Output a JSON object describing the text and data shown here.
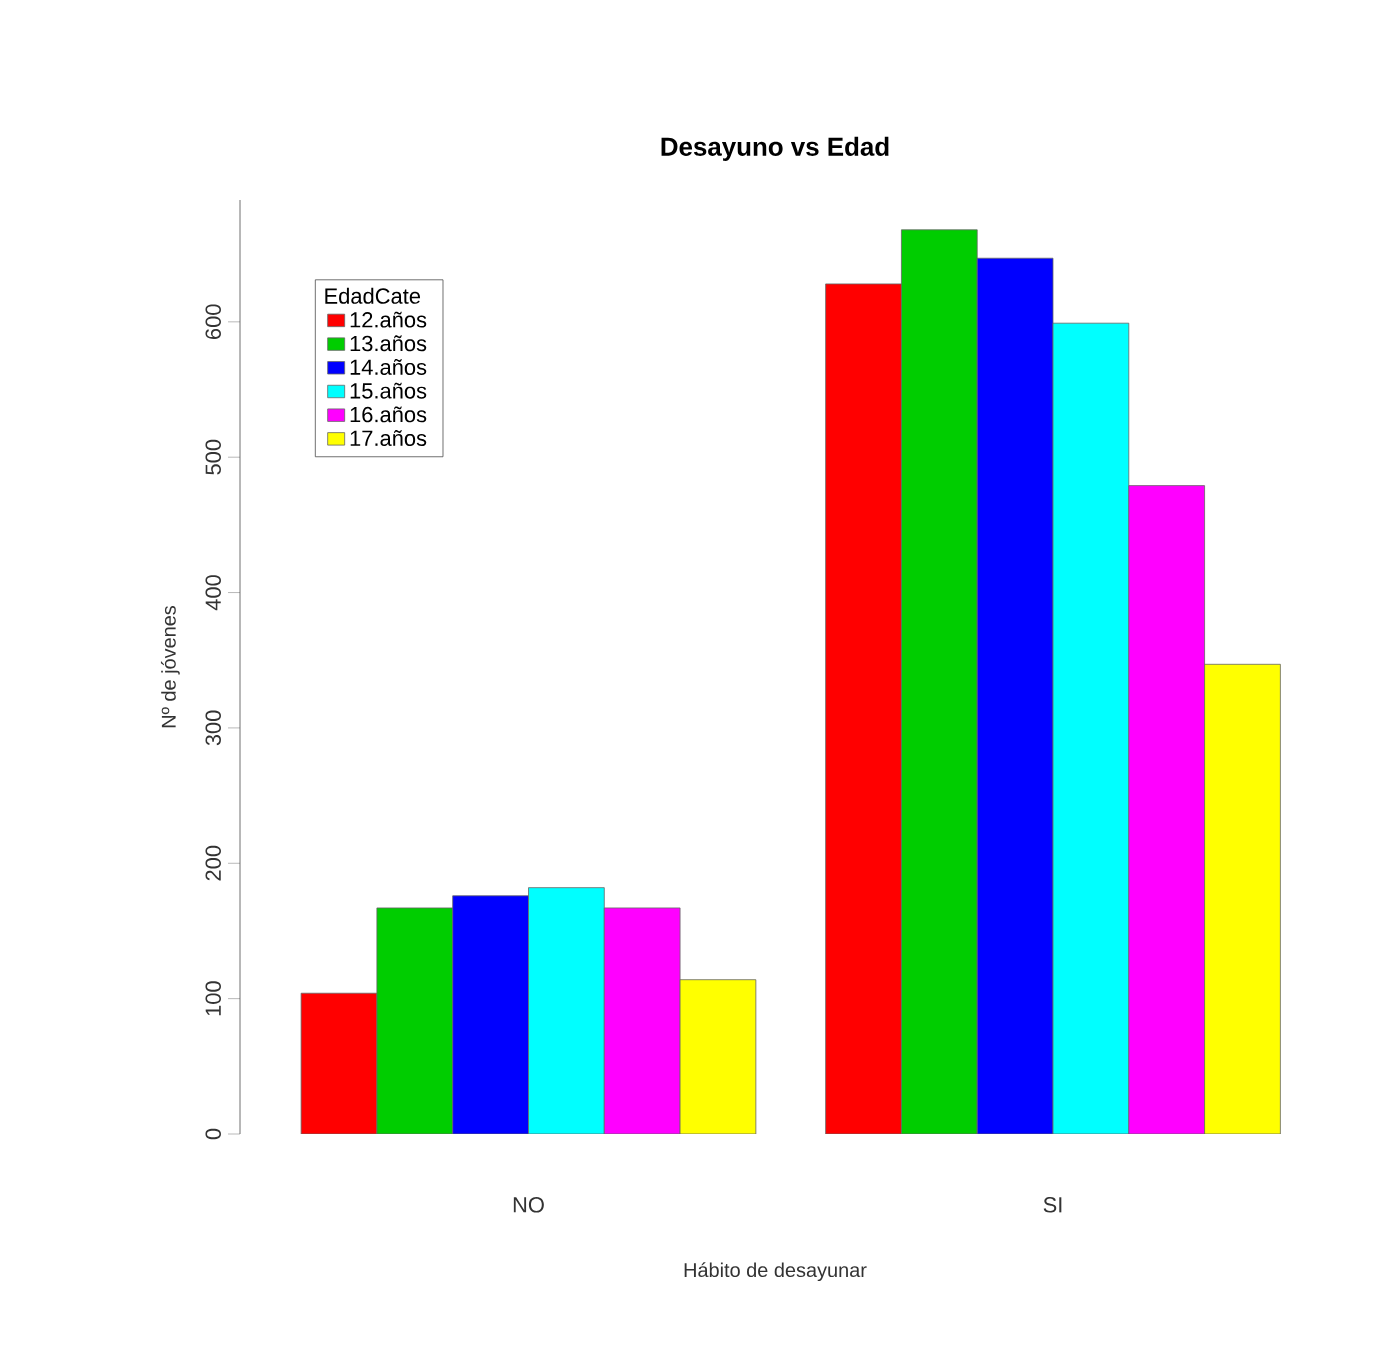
{
  "chart_data": {
    "type": "bar",
    "title": "Desayuno vs Edad",
    "xlabel": "Hábito de desayunar",
    "ylabel": "Nº de jóvenes",
    "legend_title": "EdadCate",
    "categories": [
      "NO",
      "SI"
    ],
    "series": [
      {
        "name": "12.años",
        "color": "#ff0000",
        "values": [
          104,
          628
        ]
      },
      {
        "name": "13.años",
        "color": "#00cd00",
        "values": [
          167,
          668
        ]
      },
      {
        "name": "14.años",
        "color": "#0000ff",
        "values": [
          176,
          647
        ]
      },
      {
        "name": "15.años",
        "color": "#00ffff",
        "values": [
          182,
          599
        ]
      },
      {
        "name": "16.años",
        "color": "#ff00ff",
        "values": [
          167,
          479
        ]
      },
      {
        "name": "17.años",
        "color": "#ffff00",
        "values": [
          114,
          347
        ]
      }
    ],
    "ylim": [
      0,
      690
    ],
    "yticks": [
      0,
      100,
      200,
      300,
      400,
      500,
      600
    ],
    "legend": "top left",
    "grid": false
  }
}
